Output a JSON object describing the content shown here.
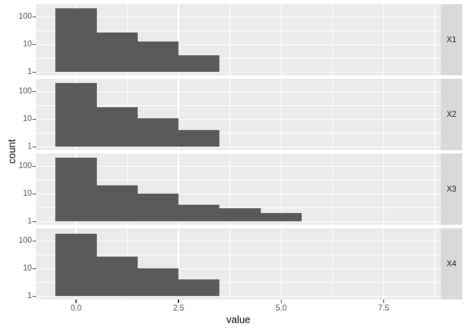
{
  "chart_data": {
    "type": "histogram",
    "xlabel": "value",
    "ylabel": "count",
    "y_scale": "log10",
    "legend": "none",
    "grid": "on",
    "facet_position": "right-strips",
    "x_ticks": [
      {
        "value": 0,
        "label": "0.0"
      },
      {
        "value": 2.5,
        "label": "2.5"
      },
      {
        "value": 5,
        "label": "5.0"
      },
      {
        "value": 7.5,
        "label": "7.5"
      }
    ],
    "x_minor_breaks": [
      1.25,
      3.75,
      6.25,
      8.75
    ],
    "y_ticks": [
      {
        "value": 100,
        "label": "100"
      },
      {
        "value": 10,
        "label": "10"
      },
      {
        "value": 1,
        "label": "1"
      }
    ],
    "y_minor_breaks": [
      3.162,
      31.62
    ],
    "xlim": [
      -0.98,
      8.9
    ],
    "ylim_log10": [
      -0.115,
      2.46
    ],
    "bin_start": -0.5,
    "bin_width": 1,
    "facets": [
      {
        "label": "X1",
        "bin_lefts": [
          -0.5,
          0.5,
          1.5,
          2.5
        ],
        "counts": [
          210,
          28,
          13,
          4
        ]
      },
      {
        "label": "X2",
        "bin_lefts": [
          -0.5,
          0.5,
          1.5,
          2.5
        ],
        "counts": [
          200,
          28,
          11,
          4
        ]
      },
      {
        "label": "X3",
        "bin_lefts": [
          -0.5,
          0.5,
          1.5,
          2.5,
          3.5,
          4.5
        ],
        "counts": [
          200,
          21,
          10,
          4,
          3,
          2
        ]
      },
      {
        "label": "X4",
        "bin_lefts": [
          -0.5,
          0.5,
          1.5,
          2.5
        ],
        "counts": [
          185,
          27,
          10,
          4
        ]
      }
    ],
    "colors": {
      "bar": "#595959",
      "panel_bg": "#EBEBEB",
      "strip_bg": "#D9D9D9",
      "grid": "#FFFFFF",
      "tick_mark": "#333333",
      "tick_text": "#4D4D4D",
      "strip_text": "#1A1A1A",
      "axis_title_text": "#000000"
    }
  }
}
